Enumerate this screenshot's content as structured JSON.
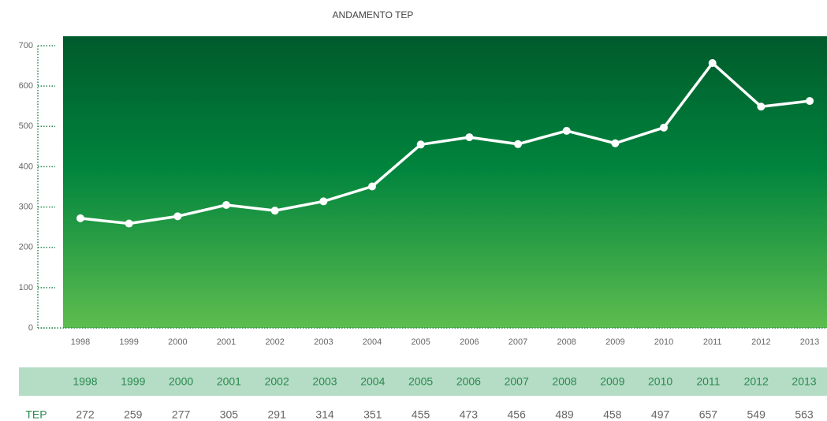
{
  "chart_data": {
    "type": "line",
    "title": "ANDAMENTO TEP",
    "categories": [
      "1998",
      "1999",
      "2000",
      "2001",
      "2002",
      "2003",
      "2004",
      "2005",
      "2006",
      "2007",
      "2008",
      "2009",
      "2010",
      "2011",
      "2012",
      "2013"
    ],
    "series": [
      {
        "name": "TEP",
        "color": "#ffffff",
        "values": [
          272,
          259,
          277,
          305,
          291,
          314,
          351,
          455,
          473,
          456,
          489,
          458,
          497,
          657,
          549,
          563
        ]
      }
    ],
    "ylim": [
      0,
      700
    ],
    "yticks": [
      0,
      100,
      200,
      300,
      400,
      500,
      600,
      700
    ]
  }
}
